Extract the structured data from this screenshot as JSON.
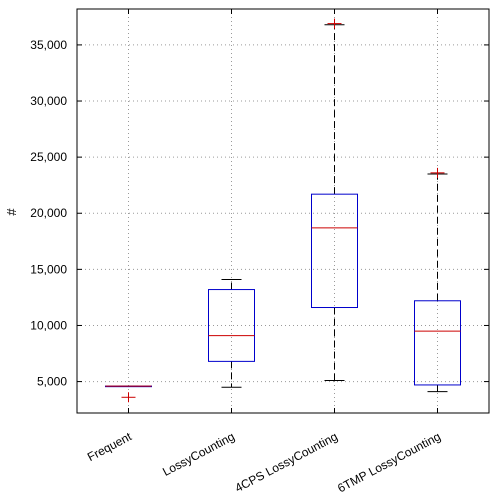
{
  "chart_data": {
    "type": "boxplot",
    "ylabel": "#",
    "xlabel": "",
    "title": "",
    "ylim": [
      2200,
      38200
    ],
    "yticks": [
      5000,
      10000,
      15000,
      20000,
      25000,
      30000,
      35000
    ],
    "ytick_labels": [
      "5,000",
      "10,000",
      "15,000",
      "20,000",
      "25,000",
      "30,000",
      "35,000"
    ],
    "grid": true,
    "categories": [
      "Frequent",
      "LossyCounting",
      "4CPS LossyCounting",
      "6TMP LossyCounting"
    ],
    "boxes": [
      {
        "category": "Frequent",
        "whisker_low": 4600,
        "q1": 4600,
        "median": 4600,
        "q3": 4600,
        "whisker_high": 4600,
        "outliers": [
          3600
        ]
      },
      {
        "category": "LossyCounting",
        "whisker_low": 4500,
        "q1": 6800,
        "median": 9100,
        "q3": 13200,
        "whisker_high": 14100,
        "outliers": []
      },
      {
        "category": "4CPS LossyCounting",
        "whisker_low": 5100,
        "q1": 11600,
        "median": 18700,
        "q3": 21700,
        "whisker_high": 36800,
        "outliers": [
          36900
        ]
      },
      {
        "category": "6TMP LossyCounting",
        "whisker_low": 4100,
        "q1": 4700,
        "median": 9500,
        "q3": 12200,
        "whisker_high": 23500,
        "outliers": [
          23600
        ]
      }
    ],
    "colors": {
      "box": "#0000cc",
      "median": "#cc0000",
      "whisker": "#000000",
      "outlier": "#cc0000",
      "grid": "#9a9a9a",
      "axis": "#000000"
    }
  }
}
